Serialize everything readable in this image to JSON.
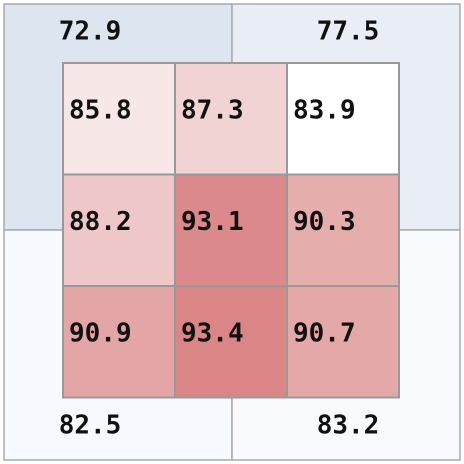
{
  "outer_grid": {
    "rows": [
      [
        "72.9",
        "77.5"
      ],
      [
        "82.5",
        "83.2"
      ]
    ]
  },
  "inner_grid": {
    "rows": [
      [
        "85.8",
        "87.3",
        "83.9"
      ],
      [
        "88.2",
        "93.1",
        "90.3"
      ],
      [
        "90.9",
        "93.4",
        "90.7"
      ]
    ]
  }
}
